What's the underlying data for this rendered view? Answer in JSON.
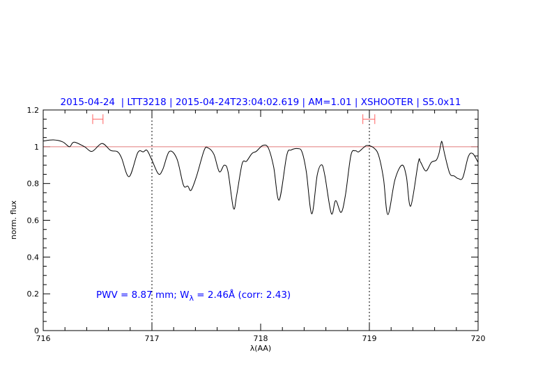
{
  "chart_data": {
    "type": "line",
    "title": "2015-04-24  | LTT3218 | 2015-04-24T23:04:02.619 | AM=1.01 | XSHOOTER | S5.0x11",
    "xlabel": "λ(AA)",
    "ylabel": "norm. flux",
    "xlim": [
      716,
      720
    ],
    "ylim": [
      0,
      1.2
    ],
    "xticks": [
      "716",
      "717",
      "718",
      "719",
      "720"
    ],
    "yticks": [
      "0",
      "0.2",
      "0.4",
      "0.6",
      "0.8",
      "1",
      "1.2"
    ],
    "grid": false,
    "reference_line": 1.0,
    "marker_lines_x": [
      717,
      719
    ],
    "ranges": [
      {
        "x": [
          716.455,
          716.55
        ],
        "y": 1.15
      },
      {
        "x": [
          718.94,
          719.05
        ],
        "y": 1.15
      }
    ],
    "annotation": {
      "prefix": "PWV = 8.87 mm; W",
      "subscript": "λ",
      "suffix": " = 2.46Å (corr: 2.43)"
    },
    "series": [
      {
        "x": [
          716.0,
          716.094,
          716.18,
          716.24,
          716.27,
          716.3,
          716.38,
          716.45,
          716.54,
          716.62,
          716.68,
          716.72,
          716.79,
          716.87,
          716.92,
          716.955,
          717.0,
          717.06,
          717.1,
          717.16,
          717.23,
          717.29,
          717.33,
          717.36,
          717.41,
          717.48,
          717.515,
          717.57,
          717.62,
          717.665,
          717.7,
          717.75,
          717.78,
          717.83,
          717.87,
          717.92,
          717.96,
          718.02,
          718.07,
          718.12,
          718.17,
          718.24,
          718.28,
          718.34,
          718.38,
          718.42,
          718.47,
          718.52,
          718.56,
          718.59,
          718.65,
          718.69,
          718.74,
          718.78,
          718.83,
          718.87,
          718.9,
          718.95,
          718.98,
          719.04,
          719.085,
          719.13,
          719.17,
          719.235,
          719.3,
          719.34,
          719.38,
          719.45,
          719.47,
          719.52,
          719.57,
          719.615,
          719.64,
          719.66,
          719.67,
          719.695,
          719.74,
          719.78,
          719.82,
          719.86,
          719.91,
          719.95,
          720.0
        ],
        "y": [
          1.031,
          1.037,
          1.026,
          1.0,
          1.021,
          1.023,
          1.0,
          0.975,
          1.018,
          0.98,
          0.974,
          0.94,
          0.837,
          0.968,
          0.972,
          0.98,
          0.927,
          0.852,
          0.877,
          0.974,
          0.934,
          0.791,
          0.786,
          0.763,
          0.839,
          0.98,
          0.994,
          0.959,
          0.864,
          0.9,
          0.864,
          0.665,
          0.738,
          0.908,
          0.921,
          0.963,
          0.975,
          1.007,
          0.994,
          0.889,
          0.71,
          0.953,
          0.982,
          0.99,
          0.972,
          0.864,
          0.635,
          0.845,
          0.902,
          0.845,
          0.637,
          0.707,
          0.643,
          0.738,
          0.953,
          0.978,
          0.972,
          0.997,
          1.007,
          0.994,
          0.953,
          0.826,
          0.631,
          0.82,
          0.9,
          0.839,
          0.677,
          0.915,
          0.917,
          0.868,
          0.915,
          0.927,
          0.963,
          1.022,
          1.022,
          0.953,
          0.854,
          0.841,
          0.826,
          0.833,
          0.946,
          0.963,
          0.915
        ]
      }
    ],
    "colors": {
      "title": "#0000ff",
      "annotation": "#0000ff",
      "line": "#000000",
      "reference": "#e07a7a",
      "ranges": "#ff6060"
    }
  }
}
